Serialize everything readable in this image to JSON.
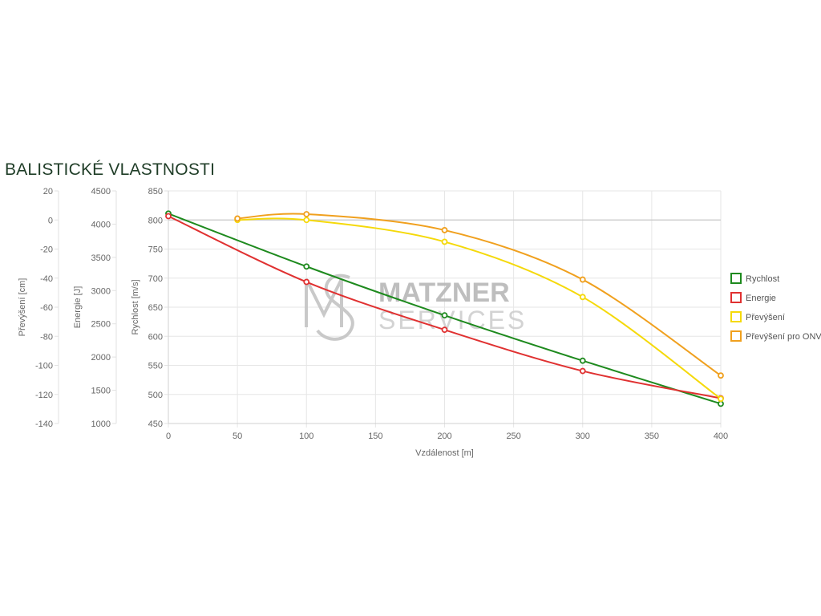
{
  "page": {
    "title": "BALISTICKÉ VLASTNOSTI"
  },
  "watermark": {
    "line1": "MATZNER",
    "line2": "SERVICES",
    "color": "#b5b5b5"
  },
  "chart_data": {
    "type": "line",
    "xlabel": "Vzdálenost [m]",
    "xlim": [
      0,
      400
    ],
    "xticks": [
      0,
      50,
      100,
      150,
      200,
      250,
      300,
      350,
      400
    ],
    "axes": [
      {
        "id": "prevyseni",
        "label": "Převýšení [cm]",
        "ylim": [
          -140,
          20
        ],
        "ticks": [
          20,
          0,
          -20,
          -40,
          -60,
          -80,
          -100,
          -120,
          -140
        ]
      },
      {
        "id": "energie",
        "label": "Energie [J]",
        "ylim": [
          1000,
          4500
        ],
        "ticks": [
          4500,
          4000,
          3500,
          3000,
          2500,
          2000,
          1500,
          1000
        ]
      },
      {
        "id": "rychlost",
        "label": "Rychlost [m/s]",
        "ylim": [
          450,
          850
        ],
        "ticks": [
          850,
          800,
          750,
          700,
          650,
          600,
          550,
          500,
          450
        ]
      }
    ],
    "grid": true,
    "legend_position": "right",
    "series": [
      {
        "name": "Rychlost",
        "axis": "rychlost",
        "color": "#1e8a1e",
        "x": [
          0,
          100,
          200,
          300,
          400
        ],
        "y": [
          811,
          720,
          636,
          558,
          484
        ]
      },
      {
        "name": "Energie",
        "axis": "energie",
        "color": "#e03131",
        "x": [
          0,
          100,
          200,
          300,
          400
        ],
        "y": [
          4120,
          3130,
          2410,
          1790,
          1380
        ]
      },
      {
        "name": "Převýšení",
        "axis": "prevyseni",
        "color": "#f5d90a",
        "x": [
          50,
          100,
          200,
          300,
          400
        ],
        "y": [
          0,
          0,
          -15,
          -53,
          -123
        ]
      },
      {
        "name": "Převýšení pro ONV",
        "axis": "prevyseni",
        "color": "#f0a01e",
        "x": [
          50,
          100,
          200,
          300,
          400
        ],
        "y": [
          1,
          4,
          -7,
          -41,
          -107
        ]
      }
    ]
  }
}
